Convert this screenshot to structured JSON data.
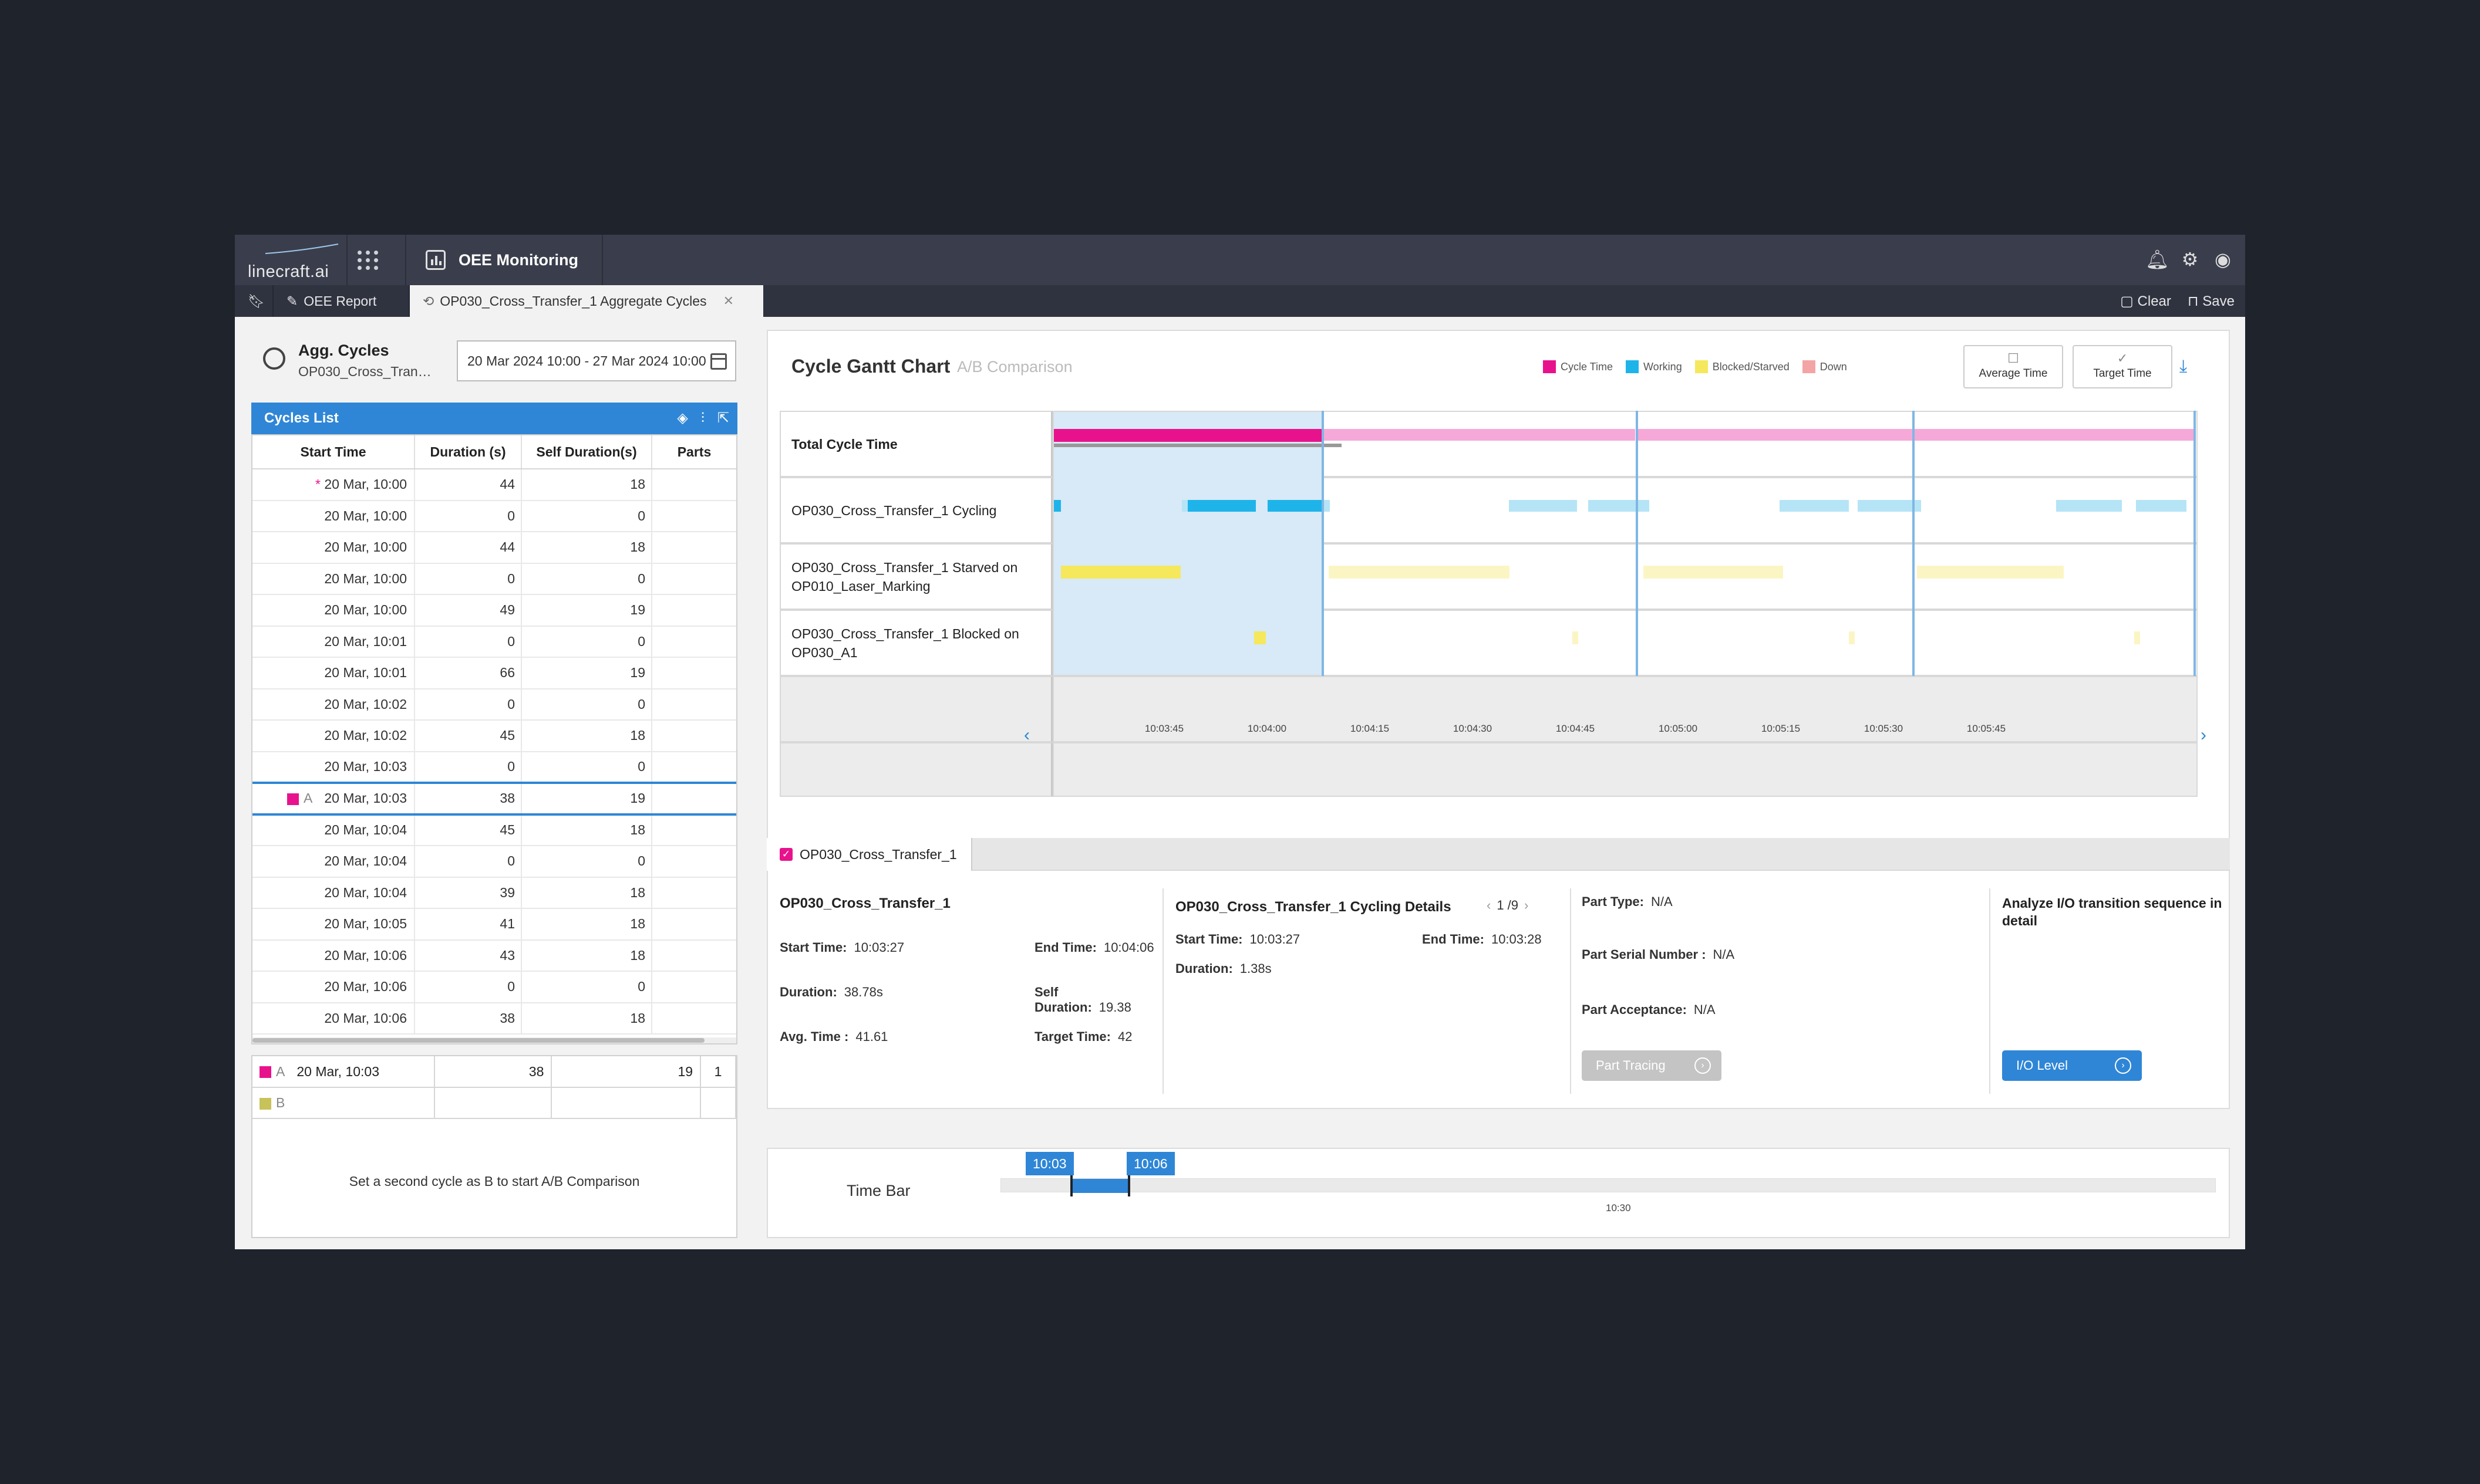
{
  "header": {
    "logo": "linecraft.ai",
    "module_title": "OEE Monitoring",
    "icons": [
      "bell-icon",
      "gear-icon",
      "user-icon"
    ]
  },
  "tabs": {
    "bookmark_icon": "bookmark-icon",
    "items": [
      {
        "label": "OEE Report"
      },
      {
        "label": "OP030_Cross_Transfer_1 Aggregate Cycles"
      }
    ],
    "close": "✕",
    "clear_label": "Clear",
    "save_label": "Save"
  },
  "left": {
    "title": "Agg. Cycles",
    "subtitle": "OP030_Cross_Trans...",
    "date_range": "20 Mar 2024 10:00 - 27 Mar 2024 10:00",
    "list_title": "Cycles List",
    "columns": [
      "Start Time",
      "Duration (s)",
      "Self Duration(s)",
      "Parts"
    ],
    "rows": [
      {
        "time": "20 Mar, 10:00",
        "duration": "44",
        "self": "18",
        "parts": "",
        "star": "*"
      },
      {
        "time": "20 Mar, 10:00",
        "duration": "0",
        "self": "0",
        "parts": ""
      },
      {
        "time": "20 Mar, 10:00",
        "duration": "44",
        "self": "18",
        "parts": ""
      },
      {
        "time": "20 Mar, 10:00",
        "duration": "0",
        "self": "0",
        "parts": ""
      },
      {
        "time": "20 Mar, 10:00",
        "duration": "49",
        "self": "19",
        "parts": ""
      },
      {
        "time": "20 Mar, 10:01",
        "duration": "0",
        "self": "0",
        "parts": ""
      },
      {
        "time": "20 Mar, 10:01",
        "duration": "66",
        "self": "19",
        "parts": ""
      },
      {
        "time": "20 Mar, 10:02",
        "duration": "0",
        "self": "0",
        "parts": ""
      },
      {
        "time": "20 Mar, 10:02",
        "duration": "45",
        "self": "18",
        "parts": ""
      },
      {
        "time": "20 Mar, 10:03",
        "duration": "0",
        "self": "0",
        "parts": ""
      },
      {
        "time": "20 Mar, 10:03",
        "duration": "38",
        "self": "19",
        "parts": "",
        "marker": "A"
      },
      {
        "time": "20 Mar, 10:04",
        "duration": "45",
        "self": "18",
        "parts": ""
      },
      {
        "time": "20 Mar, 10:04",
        "duration": "0",
        "self": "0",
        "parts": ""
      },
      {
        "time": "20 Mar, 10:04",
        "duration": "39",
        "self": "18",
        "parts": ""
      },
      {
        "time": "20 Mar, 10:05",
        "duration": "41",
        "self": "18",
        "parts": ""
      },
      {
        "time": "20 Mar, 10:06",
        "duration": "43",
        "self": "18",
        "parts": ""
      },
      {
        "time": "20 Mar, 10:06",
        "duration": "0",
        "self": "0",
        "parts": ""
      },
      {
        "time": "20 Mar, 10:06",
        "duration": "38",
        "self": "18",
        "parts": ""
      }
    ],
    "ab": {
      "a": {
        "label": "A",
        "time": "20 Mar, 10:03",
        "duration": "38",
        "self": "19",
        "parts": "1"
      },
      "b": {
        "label": "B"
      },
      "message": "Set a second cycle as B to start A/B Comparison"
    }
  },
  "gantt": {
    "title": "Cycle Gantt Chart",
    "subtitle": "A/B Comparison",
    "legend": [
      {
        "label": "Cycle Time",
        "color": "#e8138c"
      },
      {
        "label": "Working",
        "color": "#1eb4ea"
      },
      {
        "label": "Blocked/Starved",
        "color": "#f5e85c"
      },
      {
        "label": "Down",
        "color": "#f3a5a5"
      }
    ],
    "average_btn": "Average Time",
    "target_btn": "Target Time",
    "rows": [
      "Total Cycle Time",
      "OP030_Cross_Transfer_1 Cycling",
      "OP030_Cross_Transfer_1 Starved on OP010_Laser_Marking",
      "OP030_Cross_Transfer_1 Blocked on OP030_A1"
    ],
    "axis_ticks": [
      "10:03:45",
      "10:04:00",
      "10:04:15",
      "10:04:30",
      "10:04:45",
      "10:05:00",
      "10:05:15",
      "10:05:30",
      "10:05:45"
    ],
    "colors": {
      "cycle": "#e8138c",
      "cycle_light": "#f6a9d8",
      "working": "#1eb4ea",
      "working_light": "#b5e4f6",
      "starved": "#f5e85c",
      "starved_light": "#fbf5c4",
      "highlight": "#d8e9f7",
      "divider": "#7fb6e4"
    }
  },
  "detail": {
    "tab_label": "OP030_Cross_Transfer_1",
    "station": {
      "title": "OP030_Cross_Transfer_1",
      "start_label": "Start Time:",
      "start": "10:03:27",
      "end_label": "End Time:",
      "end": "10:04:06",
      "duration_label": "Duration:",
      "duration": "38.78s",
      "self_label": "Self Duration:",
      "self": "19.38",
      "avg_label": "Avg. Time :",
      "avg": "41.61",
      "target_label": "Target Time:",
      "target": "42"
    },
    "cycling": {
      "title": "OP030_Cross_Transfer_1 Cycling Details",
      "pager": "1 /9",
      "start_label": "Start Time:",
      "start": "10:03:27",
      "end_label": "End Time:",
      "end": "10:03:28",
      "duration_label": "Duration:",
      "duration": "1.38s"
    },
    "part": {
      "type_label": "Part Type:",
      "type": "N/A",
      "serial_label": "Part Serial Number :",
      "serial": "N/A",
      "accept_label": "Part Acceptance:",
      "accept": "N/A",
      "button": "Part Tracing"
    },
    "io": {
      "title": "Analyze I/O transition sequence in detail",
      "button": "I/O Level"
    }
  },
  "timebar": {
    "label": "Time Bar",
    "start_flag": "10:03",
    "end_flag": "10:06",
    "tick": "10:30"
  }
}
